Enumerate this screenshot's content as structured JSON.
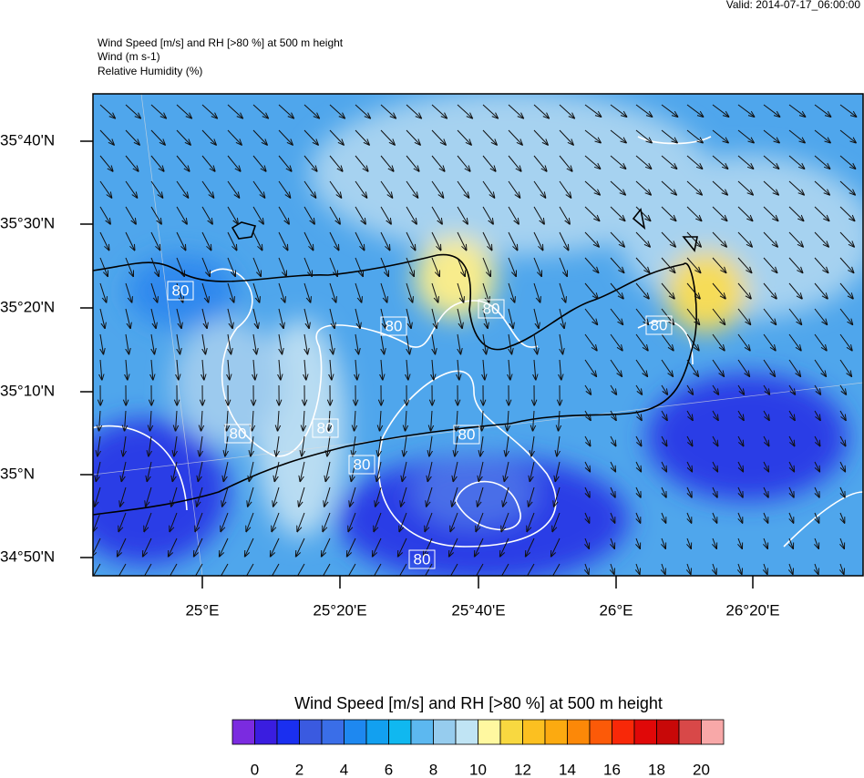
{
  "header": {
    "valid": "Valid: 2014-07-17_06:00:00",
    "title": "Wind Speed [m/s] and RH [>80 %] at 500 m height",
    "wind": "Wind   (m s-1)",
    "rh": "Relative Humidity   (%)"
  },
  "map": {
    "lat_labels": [
      "35°40'N",
      "35°30'N",
      "35°20'N",
      "35°10'N",
      "35°N",
      "34°50'N"
    ],
    "lon_labels": [
      "25°E",
      "25°20'E",
      "25°40'E",
      "26°E",
      "26°20'E"
    ],
    "contour_labels": [
      "80",
      "80",
      "80",
      "80",
      "80",
      "80",
      "80",
      "80",
      "80"
    ]
  },
  "colorbar": {
    "title": "Wind Speed [m/s] and RH [>80 %] at 500 m height",
    "colors": [
      "#7b2be0",
      "#3a1de0",
      "#1a2ff0",
      "#3a5ae0",
      "#3a6ee8",
      "#1e88f0",
      "#12a0f0",
      "#10b8f0",
      "#5cb8f0",
      "#96ccee",
      "#c0e4f4",
      "#fff8a0",
      "#f8d840",
      "#fcc020",
      "#fcaa10",
      "#fc8808",
      "#fc5a08",
      "#f82808",
      "#e00808",
      "#c80808",
      "#d84848",
      "#f8a8a8"
    ],
    "ticks": [
      0,
      2,
      4,
      6,
      8,
      10,
      12,
      14,
      16,
      18,
      20
    ]
  }
}
